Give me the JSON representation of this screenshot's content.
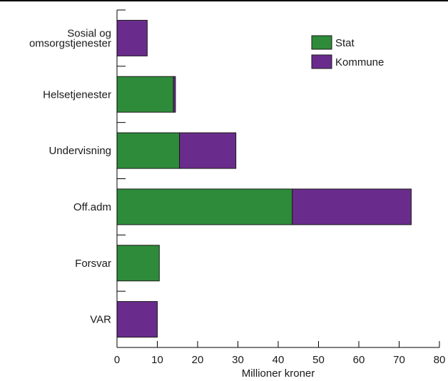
{
  "chart_data": {
    "type": "bar",
    "orientation": "horizontal",
    "stacked": true,
    "categories": [
      "Sosial og omsorgstjenester",
      "Helsetjenester",
      "Undervisning",
      "Off.adm",
      "Forsvar",
      "VAR"
    ],
    "category_lines": [
      [
        "Sosial og",
        "omsorgstjenester"
      ],
      [
        "Helsetjenester"
      ],
      [
        "Undervisning"
      ],
      [
        "Off.adm"
      ],
      [
        "Forsvar"
      ],
      [
        "VAR"
      ]
    ],
    "series": [
      {
        "name": "Stat",
        "color": "#2e8b3a",
        "values": [
          0,
          14,
          15.5,
          43.5,
          10.5,
          0
        ]
      },
      {
        "name": "Kommune",
        "color": "#6a2c8c",
        "values": [
          7.5,
          0.5,
          14,
          29.5,
          0,
          10
        ]
      }
    ],
    "xlabel": "Millioner kroner",
    "ylabel": "",
    "xlim": [
      0,
      80
    ],
    "xticks": [
      0,
      10,
      20,
      30,
      40,
      50,
      60,
      70,
      80
    ],
    "grid": false,
    "legend": "top-right"
  }
}
